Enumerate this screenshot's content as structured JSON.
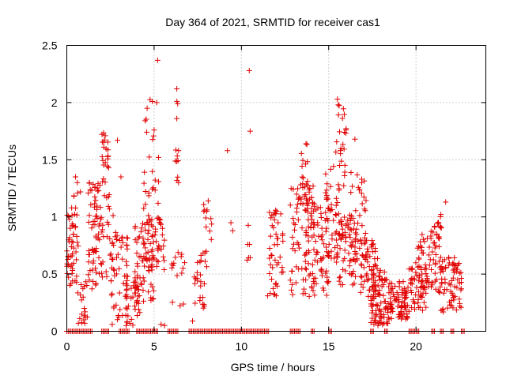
{
  "chart_data": {
    "type": "scatter",
    "title": "Day 364 of 2021, SRMTID for receiver cas1",
    "xlabel": "GPS time / hours",
    "ylabel": "SRMTID / TECUs",
    "xlim": [
      0,
      24
    ],
    "ylim": [
      0,
      2.5
    ],
    "x_ticks": [
      0,
      5,
      10,
      15,
      20
    ],
    "y_ticks": [
      0,
      0.5,
      1,
      1.5,
      2,
      2.5
    ],
    "x_tick_labels": [
      "0",
      "5",
      "10",
      "15",
      "20"
    ],
    "y_tick_labels": [
      "0",
      "0.5",
      "1",
      "1.5",
      "2",
      "2.5"
    ],
    "grid": true,
    "marker": "+",
    "color": "#e00000",
    "series": [
      {
        "name": "cas1",
        "clusters": [
          {
            "x": [
              0.0,
              0.6
            ],
            "y": [
              0.4,
              1.1
            ],
            "n": 45
          },
          {
            "x": [
              0.3,
              0.8
            ],
            "y": [
              0.7,
              1.3
            ],
            "n": 10
          },
          {
            "x": [
              0.6,
              1.2
            ],
            "y": [
              0.05,
              0.45
            ],
            "n": 18
          },
          {
            "x": [
              1.2,
              2.0
            ],
            "y": [
              0.3,
              1.3
            ],
            "n": 70
          },
          {
            "x": [
              2.0,
              2.4
            ],
            "y": [
              1.3,
              1.75
            ],
            "n": 22
          },
          {
            "x": [
              2.0,
              2.7
            ],
            "y": [
              0.4,
              1.2
            ],
            "n": 25
          },
          {
            "x": [
              2.5,
              3.5
            ],
            "y": [
              0.1,
              0.9
            ],
            "n": 50
          },
          {
            "x": [
              3.3,
              4.2
            ],
            "y": [
              0.05,
              0.5
            ],
            "n": 35
          },
          {
            "x": [
              3.9,
              5.0
            ],
            "y": [
              0.2,
              1.0
            ],
            "n": 70
          },
          {
            "x": [
              4.3,
              5.3
            ],
            "y": [
              0.6,
              1.4
            ],
            "n": 35
          },
          {
            "x": [
              4.4,
              5.2
            ],
            "y": [
              1.5,
              2.05
            ],
            "n": 7
          },
          {
            "x": [
              5.1,
              5.6
            ],
            "y": [
              0.5,
              1.0
            ],
            "n": 22
          },
          {
            "x": [
              6.0,
              6.8
            ],
            "y": [
              0.2,
              0.7
            ],
            "n": 15
          },
          {
            "x": [
              6.2,
              6.4
            ],
            "y": [
              1.3,
              2.1
            ],
            "n": 8
          },
          {
            "x": [
              7.3,
              8.1
            ],
            "y": [
              0.2,
              0.7
            ],
            "n": 25
          },
          {
            "x": [
              7.8,
              8.3
            ],
            "y": [
              0.6,
              1.15
            ],
            "n": 12
          },
          {
            "x": [
              10.3,
              10.6
            ],
            "y": [
              0.6,
              1.0
            ],
            "n": 6
          },
          {
            "x": [
              11.6,
              12.4
            ],
            "y": [
              0.3,
              1.1
            ],
            "n": 45
          },
          {
            "x": [
              12.8,
              14.2
            ],
            "y": [
              0.3,
              1.3
            ],
            "n": 90
          },
          {
            "x": [
              13.4,
              13.9
            ],
            "y": [
              1.0,
              1.65
            ],
            "n": 18
          },
          {
            "x": [
              14.0,
              15.0
            ],
            "y": [
              0.3,
              1.1
            ],
            "n": 60
          },
          {
            "x": [
              14.8,
              15.6
            ],
            "y": [
              0.6,
              1.45
            ],
            "n": 45
          },
          {
            "x": [
              15.4,
              16.0
            ],
            "y": [
              1.2,
              2.0
            ],
            "n": 25
          },
          {
            "x": [
              15.5,
              16.6
            ],
            "y": [
              0.4,
              1.0
            ],
            "n": 60
          },
          {
            "x": [
              16.2,
              17.2
            ],
            "y": [
              0.6,
              1.4
            ],
            "n": 45
          },
          {
            "x": [
              16.8,
              17.8
            ],
            "y": [
              0.3,
              0.8
            ],
            "n": 50
          },
          {
            "x": [
              17.4,
              18.4
            ],
            "y": [
              0.05,
              0.55
            ],
            "n": 90
          },
          {
            "x": [
              18.4,
              19.6
            ],
            "y": [
              0.1,
              0.45
            ],
            "n": 80
          },
          {
            "x": [
              19.6,
              20.6
            ],
            "y": [
              0.15,
              0.6
            ],
            "n": 60
          },
          {
            "x": [
              20.0,
              20.5
            ],
            "y": [
              0.5,
              0.85
            ],
            "n": 15
          },
          {
            "x": [
              20.6,
              21.4
            ],
            "y": [
              0.3,
              0.9
            ],
            "n": 40
          },
          {
            "x": [
              21.0,
              21.5
            ],
            "y": [
              0.7,
              1.05
            ],
            "n": 15
          },
          {
            "x": [
              21.4,
              22.6
            ],
            "y": [
              0.15,
              0.65
            ],
            "n": 70
          }
        ],
        "points": [
          [
            5.2,
            2.37
          ],
          [
            10.45,
            2.28
          ],
          [
            4.6,
            1.95
          ],
          [
            4.9,
            2.01
          ],
          [
            5.15,
            2.0
          ],
          [
            6.3,
            2.12
          ],
          [
            6.35,
            1.99
          ],
          [
            6.3,
            1.86
          ],
          [
            10.5,
            1.75
          ],
          [
            5.0,
            1.76
          ],
          [
            9.2,
            1.58
          ],
          [
            6.4,
            1.58
          ],
          [
            5.25,
            1.52
          ],
          [
            2.2,
            1.71
          ],
          [
            2.9,
            1.67
          ],
          [
            15.5,
            2.03
          ],
          [
            15.55,
            1.98
          ],
          [
            15.9,
            1.74
          ],
          [
            16.5,
            1.68
          ],
          [
            13.7,
            1.64
          ],
          [
            0.5,
            1.35
          ],
          [
            0.6,
            1.3
          ],
          [
            3.1,
            1.35
          ],
          [
            6.4,
            1.3
          ],
          [
            8.1,
            1.14
          ],
          [
            8.0,
            1.05
          ],
          [
            9.4,
            0.95
          ],
          [
            9.5,
            0.88
          ],
          [
            21.7,
            1.13
          ],
          [
            22.4,
            0.58
          ],
          [
            7.2,
            0.09
          ],
          [
            5.6,
            0.05
          ],
          [
            5.4,
            0.06
          ],
          [
            11.5,
            0.31
          ],
          [
            0.2,
            0.9
          ],
          [
            1.0,
            0.2
          ],
          [
            1.05,
            0.17
          ],
          [
            2.6,
            0.06
          ],
          [
            3.4,
            0.05
          ],
          [
            12.1,
            0.95
          ]
        ],
        "zero_segments": [
          [
            0.0,
            1.5
          ],
          [
            2.0,
            2.4
          ],
          [
            3.0,
            3.6
          ],
          [
            4.0,
            5.2
          ],
          [
            5.8,
            6.4
          ],
          [
            7.0,
            11.6
          ],
          [
            12.8,
            13.4
          ],
          [
            14.0,
            14.2
          ],
          [
            15.0,
            15.2
          ],
          [
            17.4,
            17.6
          ],
          [
            18.2,
            18.4
          ],
          [
            19.6,
            20.2
          ],
          [
            20.9,
            21.1
          ],
          [
            21.4,
            21.6
          ],
          [
            22.0,
            22.2
          ],
          [
            22.6,
            22.8
          ]
        ]
      }
    ]
  }
}
